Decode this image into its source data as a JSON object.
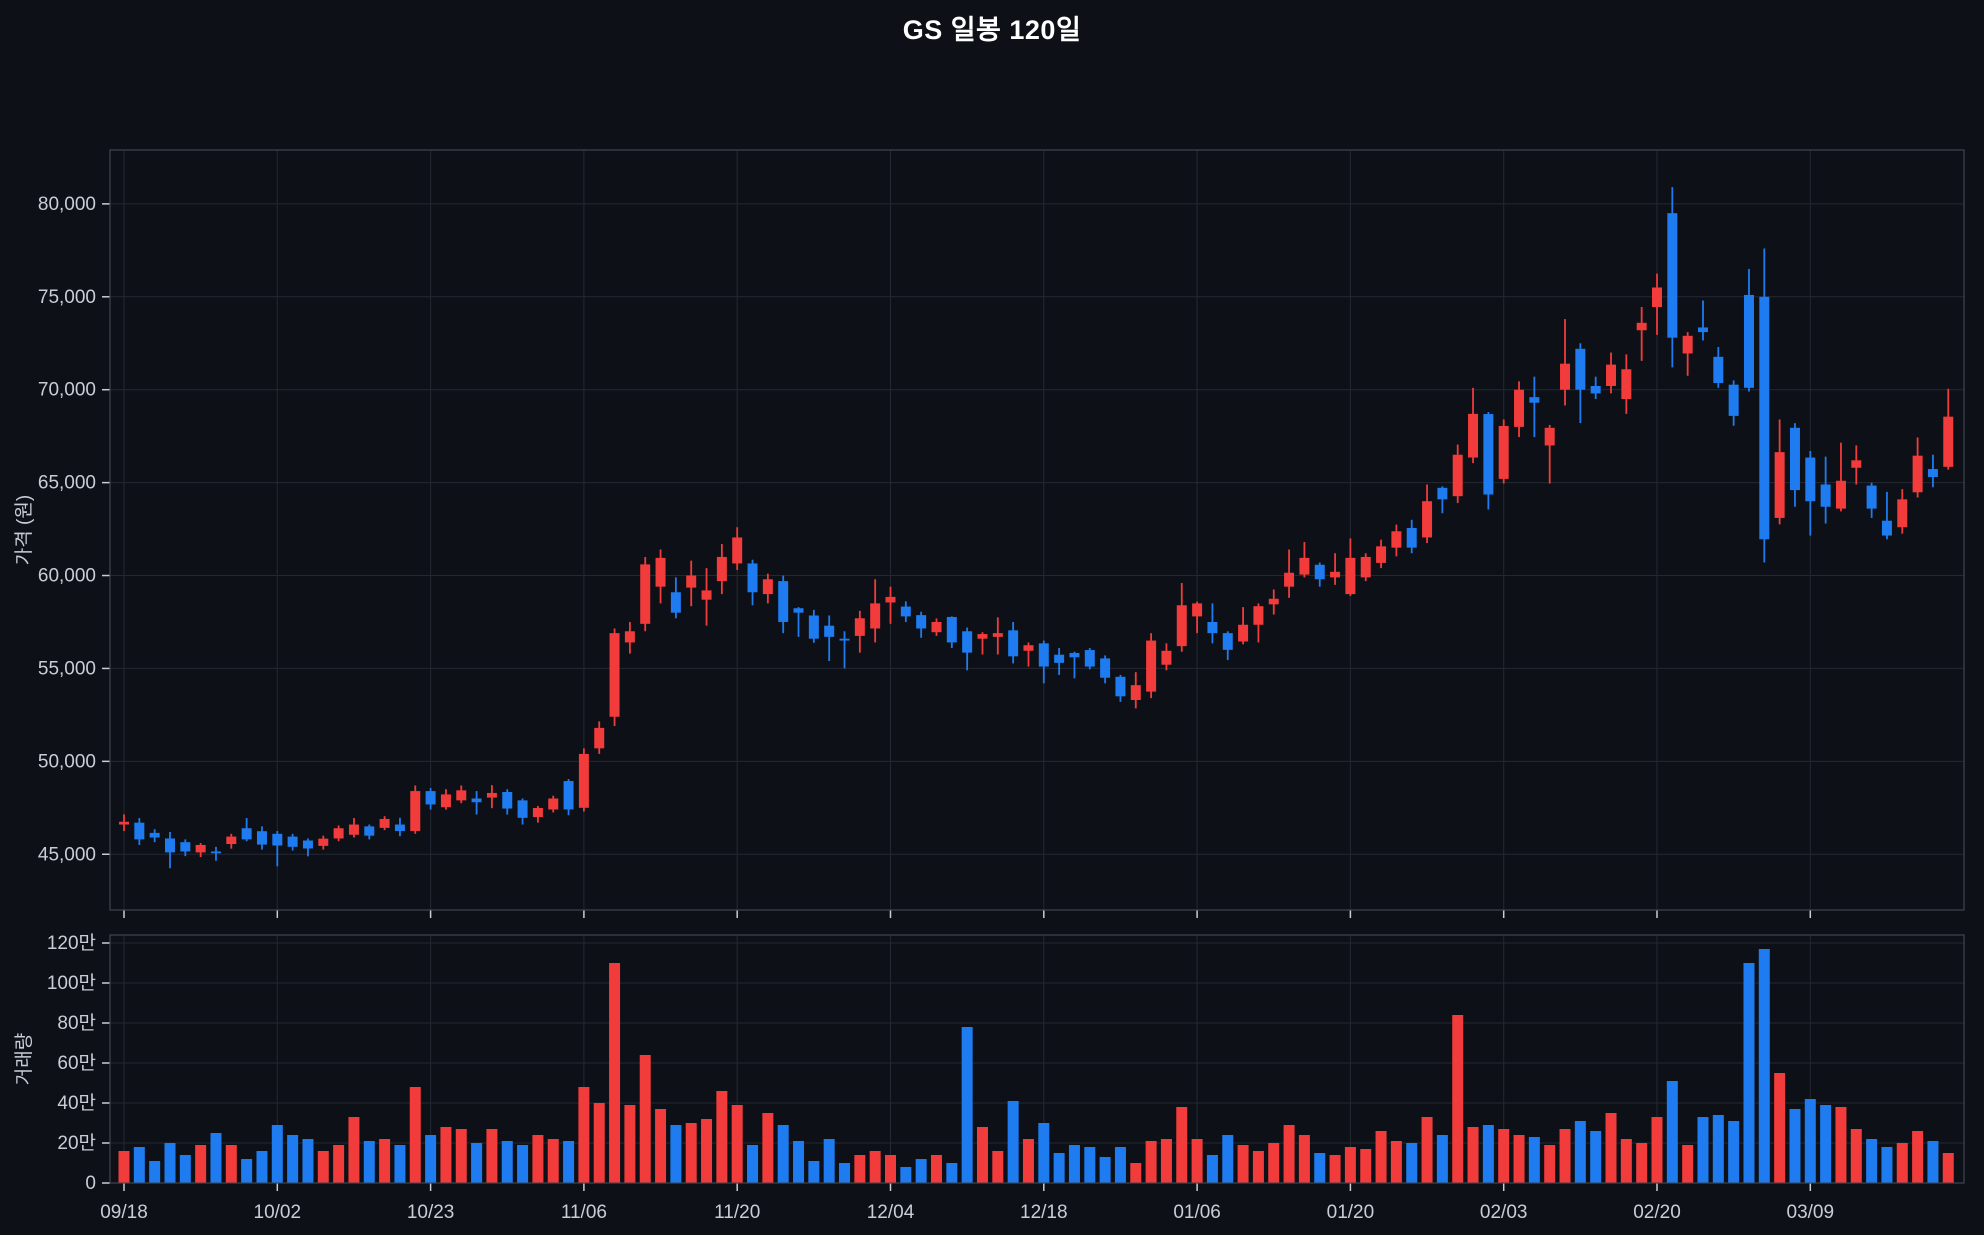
{
  "title": "GS 일봉 120일",
  "colors": {
    "background": "#0d1117",
    "up": "#f23b3b",
    "down": "#1e7bf0",
    "grid": "#232833",
    "spine": "#3f4551",
    "tick_text": "#c8cdd6",
    "title_text": "#ffffff"
  },
  "price_axis": {
    "label": "가격 (원)",
    "tick_values": [
      45000,
      50000,
      55000,
      60000,
      65000,
      70000,
      75000,
      80000
    ],
    "tick_labels": [
      "45,000",
      "50,000",
      "55,000",
      "60,000",
      "65,000",
      "70,000",
      "75,000",
      "80,000"
    ]
  },
  "volume_axis": {
    "label": "거래량",
    "tick_values": [
      0,
      20,
      40,
      60,
      80,
      100,
      120
    ],
    "tick_labels": [
      "0",
      "20만",
      "40만",
      "60만",
      "80만",
      "100만",
      "120만"
    ]
  },
  "x_axis": {
    "tick_bars": [
      0,
      10,
      20,
      30,
      40,
      50,
      60,
      70,
      80,
      90,
      100,
      110
    ],
    "tick_labels": [
      "09/18",
      "10/02",
      "10/23",
      "11/06",
      "11/20",
      "12/04",
      "12/18",
      "01/06",
      "01/20",
      "02/03",
      "02/20",
      "03/09"
    ]
  },
  "chart_data": {
    "type": "candlestick+volume",
    "price_ylim": [
      42000,
      82900
    ],
    "volume_ylim": [
      0,
      124
    ],
    "volume_unit": "만",
    "fields": [
      "open",
      "high",
      "low",
      "close",
      "volume"
    ],
    "candles": [
      [
        46600,
        47150,
        46250,
        46750,
        16
      ],
      [
        46700,
        46950,
        45500,
        45800,
        18
      ],
      [
        46150,
        46350,
        45650,
        45900,
        11
      ],
      [
        45850,
        46200,
        44250,
        45100,
        20
      ],
      [
        45650,
        45800,
        44900,
        45150,
        14
      ],
      [
        45100,
        45600,
        44850,
        45500,
        19
      ],
      [
        45150,
        45400,
        44650,
        45100,
        25
      ],
      [
        45550,
        46100,
        45300,
        45950,
        19
      ],
      [
        46400,
        46950,
        45700,
        45800,
        12
      ],
      [
        46240,
        46500,
        45250,
        45520,
        16
      ],
      [
        46100,
        46250,
        44350,
        45470,
        29
      ],
      [
        45950,
        46100,
        45200,
        45400,
        24
      ],
      [
        45740,
        45850,
        44890,
        45310,
        22
      ],
      [
        45450,
        46000,
        45250,
        45840,
        16
      ],
      [
        45850,
        46550,
        45700,
        46400,
        19
      ],
      [
        46050,
        46950,
        45900,
        46600,
        33
      ],
      [
        46500,
        46600,
        45800,
        46000,
        21
      ],
      [
        46420,
        47050,
        46300,
        46900,
        22
      ],
      [
        46600,
        46960,
        45970,
        46250,
        19
      ],
      [
        46250,
        48700,
        46100,
        48400,
        48
      ],
      [
        48400,
        48560,
        47410,
        47680,
        24
      ],
      [
        47530,
        48500,
        47400,
        48220,
        28
      ],
      [
        47900,
        48700,
        47750,
        48440,
        27
      ],
      [
        48000,
        48400,
        47140,
        47800,
        20
      ],
      [
        48050,
        48720,
        47480,
        48300,
        27
      ],
      [
        48350,
        48500,
        47140,
        47460,
        21
      ],
      [
        47900,
        48000,
        46600,
        46960,
        19
      ],
      [
        47000,
        47600,
        46700,
        47490,
        24
      ],
      [
        47410,
        48150,
        47250,
        48000,
        22
      ],
      [
        48940,
        49050,
        47100,
        47410,
        21
      ],
      [
        47500,
        50700,
        47300,
        50400,
        48
      ],
      [
        50700,
        52150,
        50400,
        51800,
        40
      ],
      [
        52400,
        57150,
        51900,
        56900,
        110
      ],
      [
        56400,
        57500,
        55800,
        57000,
        39
      ],
      [
        57400,
        61000,
        57000,
        60600,
        64
      ],
      [
        59400,
        61400,
        58500,
        60950,
        37
      ],
      [
        59100,
        59900,
        57700,
        58000,
        29
      ],
      [
        59350,
        60800,
        58350,
        60000,
        30
      ],
      [
        58700,
        60400,
        57300,
        59200,
        32
      ],
      [
        59700,
        61700,
        59000,
        61000,
        46
      ],
      [
        60650,
        62600,
        60300,
        62050,
        39
      ],
      [
        60650,
        60850,
        58400,
        59100,
        19
      ],
      [
        59000,
        60100,
        58500,
        59800,
        35
      ],
      [
        59700,
        60000,
        56900,
        57500,
        29
      ],
      [
        58240,
        58300,
        56700,
        58000,
        21
      ],
      [
        57850,
        58150,
        56380,
        56600,
        11
      ],
      [
        57300,
        57850,
        55400,
        56700,
        22
      ],
      [
        56600,
        57000,
        55000,
        56500,
        10
      ],
      [
        56750,
        58100,
        55850,
        57700,
        14
      ],
      [
        57150,
        59800,
        56400,
        58500,
        16
      ],
      [
        58550,
        59400,
        57400,
        58850,
        14
      ],
      [
        58330,
        58610,
        57500,
        57800,
        8
      ],
      [
        57870,
        58050,
        56650,
        57150,
        12
      ],
      [
        56950,
        57690,
        56750,
        57500,
        14
      ],
      [
        57770,
        57800,
        56100,
        56400,
        10
      ],
      [
        57000,
        57200,
        54900,
        55850,
        78
      ],
      [
        56600,
        56950,
        55750,
        56850,
        28
      ],
      [
        56700,
        57750,
        55750,
        56900,
        16
      ],
      [
        57050,
        57500,
        55270,
        55650,
        41
      ],
      [
        55950,
        56400,
        55100,
        56250,
        22
      ],
      [
        56350,
        56500,
        54200,
        55100,
        30
      ],
      [
        55740,
        56100,
        54650,
        55300,
        15
      ],
      [
        55830,
        55900,
        54470,
        55600,
        19
      ],
      [
        55990,
        56100,
        54950,
        55100,
        18
      ],
      [
        55540,
        55700,
        54200,
        54500,
        13
      ],
      [
        54550,
        54650,
        53200,
        53500,
        18
      ],
      [
        53300,
        54800,
        52850,
        54100,
        10
      ],
      [
        53750,
        56900,
        53400,
        56500,
        21
      ],
      [
        55200,
        56350,
        54900,
        55950,
        22
      ],
      [
        56200,
        59600,
        55900,
        58400,
        38
      ],
      [
        57800,
        58600,
        56900,
        58500,
        22
      ],
      [
        57500,
        58500,
        56350,
        56900,
        14
      ],
      [
        56900,
        57000,
        55450,
        56000,
        24
      ],
      [
        56450,
        58300,
        56300,
        57350,
        19
      ],
      [
        57350,
        58500,
        56400,
        58350,
        16
      ],
      [
        58450,
        59250,
        57900,
        58750,
        20
      ],
      [
        59400,
        61400,
        58800,
        60150,
        29
      ],
      [
        60050,
        61800,
        59900,
        60950,
        24
      ],
      [
        60580,
        60700,
        59400,
        59800,
        15
      ],
      [
        59900,
        61200,
        59500,
        60200,
        14
      ],
      [
        59000,
        62000,
        58900,
        60950,
        18
      ],
      [
        59900,
        61200,
        59700,
        61000,
        17
      ],
      [
        60680,
        61930,
        60400,
        61570,
        26
      ],
      [
        61500,
        62740,
        61030,
        62380,
        21
      ],
      [
        62560,
        63000,
        61200,
        61500,
        20
      ],
      [
        62050,
        64900,
        61750,
        64000,
        33
      ],
      [
        64720,
        64800,
        63350,
        64100,
        24
      ],
      [
        64270,
        67050,
        63900,
        66500,
        84
      ],
      [
        66350,
        70100,
        66050,
        68700,
        28
      ],
      [
        68690,
        68800,
        63550,
        64360,
        29
      ],
      [
        65200,
        68400,
        64950,
        68050,
        27
      ],
      [
        68000,
        70450,
        67450,
        70000,
        24
      ],
      [
        69600,
        70700,
        67450,
        69300,
        23
      ],
      [
        67000,
        68100,
        64950,
        67950,
        19
      ],
      [
        70000,
        73800,
        69150,
        71400,
        27
      ],
      [
        72200,
        72500,
        68200,
        70000,
        31
      ],
      [
        70200,
        70700,
        69500,
        69800,
        26
      ],
      [
        70200,
        72000,
        69800,
        71350,
        35
      ],
      [
        69500,
        71900,
        68700,
        71100,
        22
      ],
      [
        73200,
        74450,
        71550,
        73600,
        20
      ],
      [
        74450,
        76250,
        72950,
        75500,
        33
      ],
      [
        79500,
        80900,
        71200,
        72800,
        51
      ],
      [
        71950,
        73100,
        70750,
        72900,
        19
      ],
      [
        73350,
        74800,
        72650,
        73100,
        33
      ],
      [
        71770,
        72300,
        70100,
        70360,
        34
      ],
      [
        70270,
        70500,
        68060,
        68590,
        31
      ],
      [
        75100,
        76500,
        69900,
        70100,
        110
      ],
      [
        75000,
        77600,
        60700,
        61950,
        117
      ],
      [
        63100,
        68400,
        62750,
        66640,
        55
      ],
      [
        67950,
        68200,
        63700,
        64600,
        37
      ],
      [
        66350,
        66700,
        62150,
        64000,
        42
      ],
      [
        64900,
        66400,
        62800,
        63700,
        39
      ],
      [
        63600,
        67150,
        63450,
        65100,
        38
      ],
      [
        65800,
        67000,
        64900,
        66200,
        27
      ],
      [
        64840,
        65000,
        63100,
        63600,
        22
      ],
      [
        62950,
        64500,
        61950,
        62150,
        18
      ],
      [
        62600,
        64650,
        62250,
        64100,
        20
      ],
      [
        64480,
        67430,
        64200,
        66450,
        26
      ],
      [
        65730,
        66500,
        64750,
        65300,
        21
      ],
      [
        65850,
        70050,
        65700,
        68550,
        15
      ]
    ]
  }
}
